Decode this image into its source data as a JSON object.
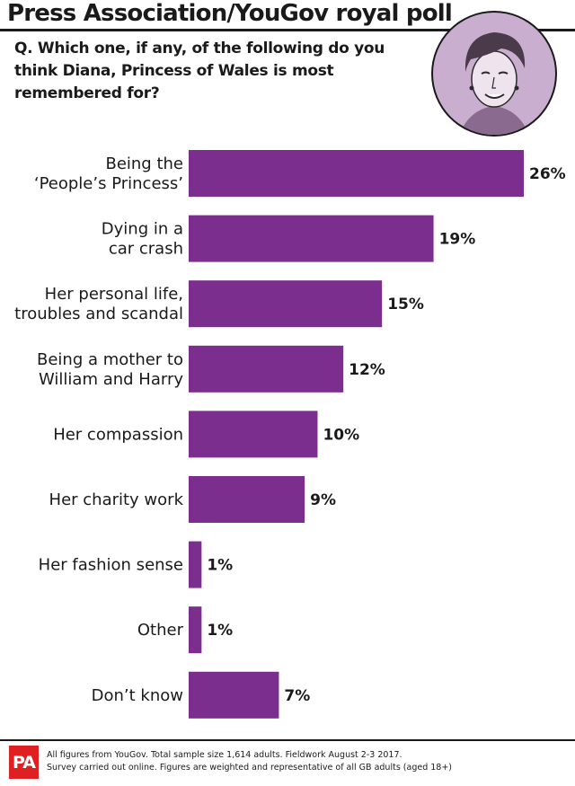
{
  "header": {
    "title": "Press Association/YouGov royal poll",
    "question": "Q. Which one, if any, of the following do you think Diana, Princess of Wales is most remembered for?"
  },
  "colors": {
    "bar": "#7b2e8e",
    "logo": "#e02020"
  },
  "chart_data": {
    "type": "bar",
    "orientation": "horizontal",
    "categories": [
      [
        "Being the",
        "‘People’s Princess’"
      ],
      [
        "Dying in a",
        "car crash"
      ],
      [
        "Her personal life,",
        "troubles and scandal"
      ],
      [
        "Being a mother to",
        "William and Harry"
      ],
      [
        "Her compassion"
      ],
      [
        "Her charity work"
      ],
      [
        "Her fashion sense"
      ],
      [
        "Other"
      ],
      [
        "Don’t know"
      ]
    ],
    "values": [
      26,
      19,
      15,
      12,
      10,
      9,
      1,
      1,
      7
    ],
    "value_labels": [
      "26%",
      "19%",
      "15%",
      "12%",
      "10%",
      "9%",
      "1%",
      "1%",
      "7%"
    ],
    "unit": "%",
    "xlim": [
      0,
      26
    ],
    "grid": false,
    "legend": "none"
  },
  "footer": {
    "logo_text": "PA",
    "note_line1": "All figures from YouGov. Total sample size 1,614 adults. Fieldwork August 2-3 2017.",
    "note_line2": "Survey carried out online. Figures are weighted and representative of all GB adults (aged 18+)"
  }
}
